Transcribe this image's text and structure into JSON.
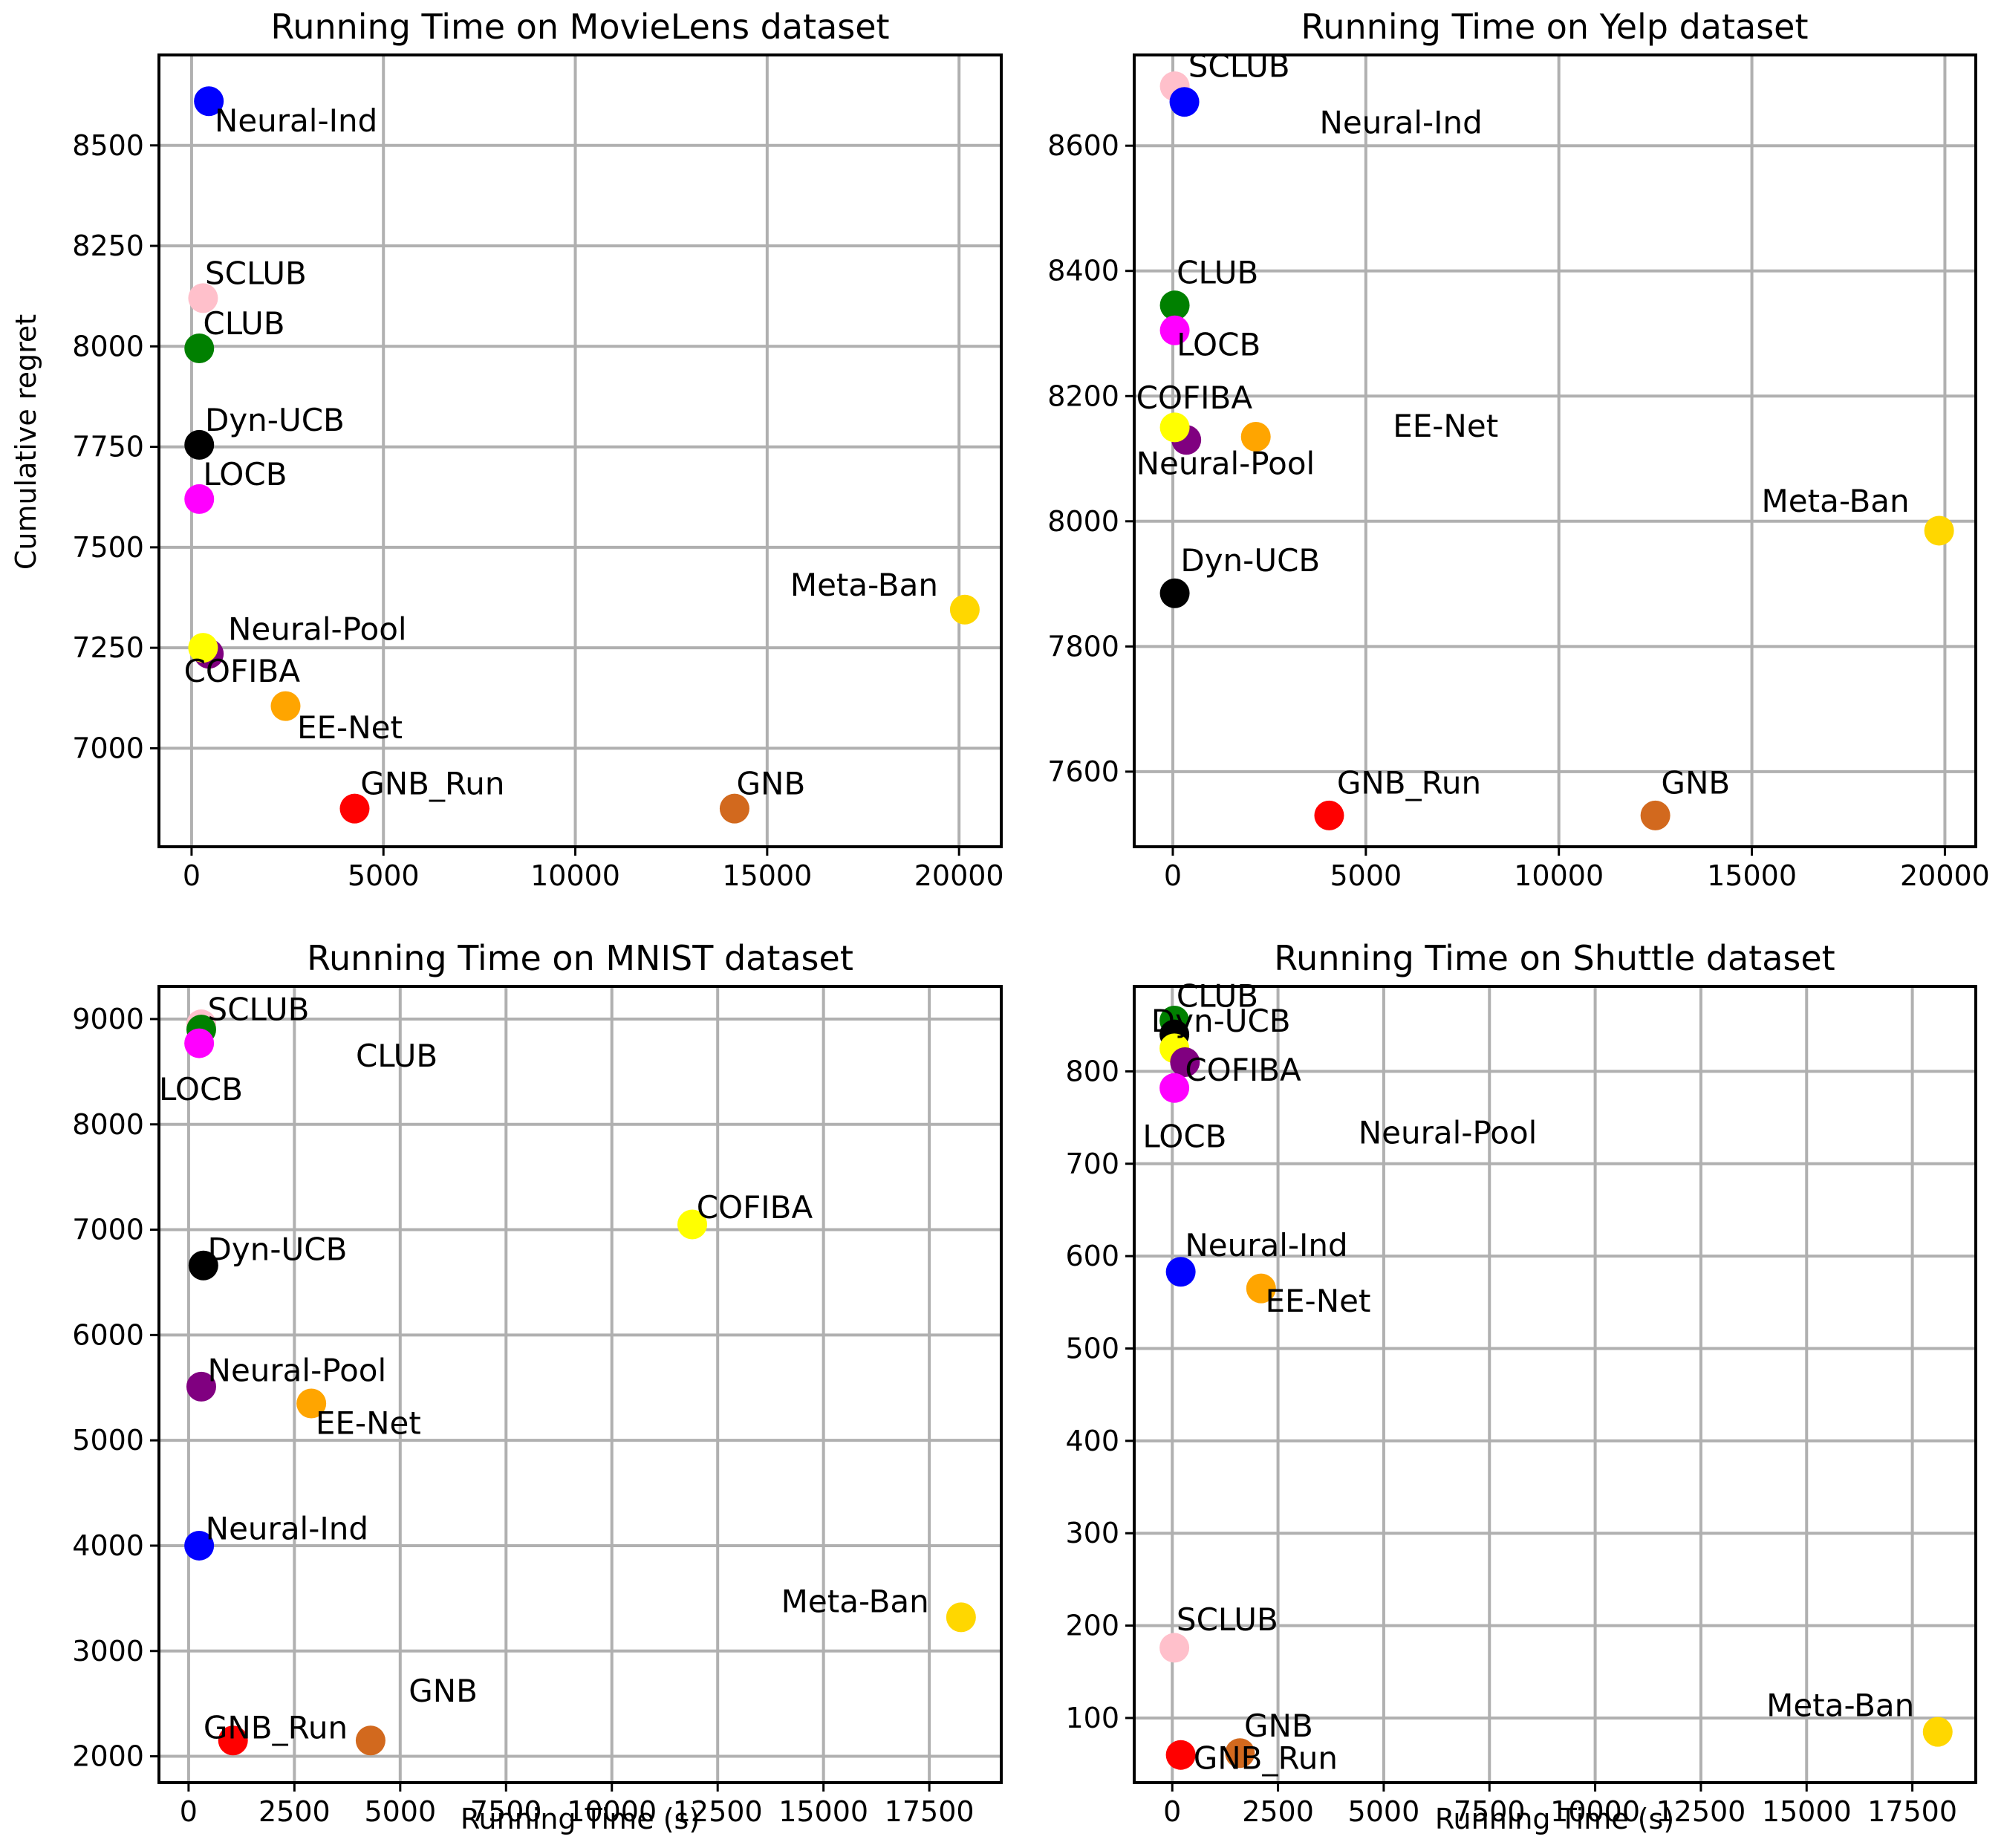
{
  "chart_data": [
    {
      "type": "scatter",
      "title": "Running Time on MovieLens dataset",
      "xlabel": "",
      "ylabel": "Cumulative regret",
      "xlim": [
        -850,
        21100
      ],
      "ylim": [
        6755,
        8725
      ],
      "xticks": [
        0,
        5000,
        10000,
        15000,
        20000
      ],
      "yticks": [
        7000,
        7250,
        7500,
        7750,
        8000,
        8250,
        8500
      ],
      "grid": true,
      "points": [
        {
          "name": "Neural-Ind",
          "x": 450,
          "y": 8610,
          "color": "#0000ff"
        },
        {
          "name": "SCLUB",
          "x": 300,
          "y": 8120,
          "color": "#ffc0cb"
        },
        {
          "name": "CLUB",
          "x": 200,
          "y": 7995,
          "color": "#008000"
        },
        {
          "name": "Dyn-UCB",
          "x": 200,
          "y": 7755,
          "color": "#000000"
        },
        {
          "name": "LOCB",
          "x": 200,
          "y": 7620,
          "color": "#ff00ff"
        },
        {
          "name": "Neural-Pool",
          "x": 450,
          "y": 7235,
          "color": "#800080"
        },
        {
          "name": "COFIBA",
          "x": 300,
          "y": 7250,
          "color": "#ffff00"
        },
        {
          "name": "EE-Net",
          "x": 2450,
          "y": 7105,
          "color": "#ffa500"
        },
        {
          "name": "GNB_Run",
          "x": 4250,
          "y": 6850,
          "color": "#ff0000"
        },
        {
          "name": "GNB",
          "x": 14150,
          "y": 6850,
          "color": "#d2691e"
        },
        {
          "name": "Meta-Ban",
          "x": 20150,
          "y": 7345,
          "color": "#ffd700"
        }
      ],
      "labels": [
        {
          "text": "Neural-Ind",
          "x": 600,
          "y": 8535
        },
        {
          "text": "SCLUB",
          "x": 350,
          "y": 8155
        },
        {
          "text": "CLUB",
          "x": 300,
          "y": 8030
        },
        {
          "text": "Dyn-UCB",
          "x": 350,
          "y": 7790
        },
        {
          "text": "LOCB",
          "x": 300,
          "y": 7655
        },
        {
          "text": "Neural-Pool",
          "x": 950,
          "y": 7270
        },
        {
          "text": "COFIBA",
          "x": -200,
          "y": 7165
        },
        {
          "text": "EE-Net",
          "x": 2750,
          "y": 7025
        },
        {
          "text": "GNB_Run",
          "x": 4400,
          "y": 6885
        },
        {
          "text": "GNB",
          "x": 14200,
          "y": 6885
        },
        {
          "text": "Meta-Ban",
          "x": 15600,
          "y": 7380
        }
      ]
    },
    {
      "type": "scatter",
      "title": "Running Time on Yelp dataset",
      "xlabel": "",
      "ylabel": "",
      "xlim": [
        -1000,
        20800
      ],
      "ylim": [
        7480,
        8745
      ],
      "xticks": [
        0,
        5000,
        10000,
        15000,
        20000
      ],
      "yticks": [
        7600,
        7800,
        8000,
        8200,
        8400,
        8600
      ],
      "grid": true,
      "points": [
        {
          "name": "SCLUB",
          "x": 50,
          "y": 8695,
          "color": "#ffc0cb"
        },
        {
          "name": "Neural-Ind",
          "x": 300,
          "y": 8670,
          "color": "#0000ff"
        },
        {
          "name": "CLUB",
          "x": 50,
          "y": 8345,
          "color": "#008000"
        },
        {
          "name": "LOCB",
          "x": 50,
          "y": 8305,
          "color": "#ff00ff"
        },
        {
          "name": "Neural-Pool",
          "x": 350,
          "y": 8130,
          "color": "#800080"
        },
        {
          "name": "COFIBA",
          "x": 50,
          "y": 8150,
          "color": "#ffff00"
        },
        {
          "name": "EE-Net",
          "x": 2150,
          "y": 8135,
          "color": "#ffa500"
        },
        {
          "name": "Dyn-UCB",
          "x": 50,
          "y": 7885,
          "color": "#000000"
        },
        {
          "name": "GNB_Run",
          "x": 4050,
          "y": 7530,
          "color": "#ff0000"
        },
        {
          "name": "GNB",
          "x": 12500,
          "y": 7530,
          "color": "#d2691e"
        },
        {
          "name": "Meta-Ban",
          "x": 19850,
          "y": 7985,
          "color": "#ffd700"
        }
      ],
      "labels": [
        {
          "text": "SCLUB",
          "x": 400,
          "y": 8710
        },
        {
          "text": "Neural-Ind",
          "x": 3800,
          "y": 8620
        },
        {
          "text": "CLUB",
          "x": 100,
          "y": 8380
        },
        {
          "text": "LOCB",
          "x": 100,
          "y": 8265
        },
        {
          "text": "COFIBA",
          "x": -950,
          "y": 8180
        },
        {
          "text": "EE-Net",
          "x": 5700,
          "y": 8135
        },
        {
          "text": "Neural-Pool",
          "x": -950,
          "y": 8075
        },
        {
          "text": "Meta-Ban",
          "x": 15250,
          "y": 8015
        },
        {
          "text": "Dyn-UCB",
          "x": 200,
          "y": 7920
        },
        {
          "text": "GNB_Run",
          "x": 4250,
          "y": 7565
        },
        {
          "text": "GNB",
          "x": 12650,
          "y": 7565
        }
      ]
    },
    {
      "type": "scatter",
      "title": "Running Time on MNIST dataset",
      "xlabel": "Running Time (s)",
      "ylabel": "",
      "xlim": [
        -700,
        19200
      ],
      "ylim": [
        1750,
        9310
      ],
      "xticks": [
        0,
        2500,
        5000,
        7500,
        10000,
        12500,
        15000,
        17500
      ],
      "tick_labels_x": [
        "0",
        "2500",
        "5000",
        "7500",
        "10000",
        "12500",
        "15000",
        "17500"
      ],
      "yticks": [
        2000,
        3000,
        4000,
        5000,
        6000,
        7000,
        8000,
        9000
      ],
      "grid": true,
      "points": [
        {
          "name": "SCLUB",
          "x": 300,
          "y": 8950,
          "color": "#ffc0cb"
        },
        {
          "name": "CLUB",
          "x": 300,
          "y": 8900,
          "color": "#008000"
        },
        {
          "name": "LOCB",
          "x": 250,
          "y": 8770,
          "color": "#ff00ff"
        },
        {
          "name": "COFIBA",
          "x": 11900,
          "y": 7050,
          "color": "#ffff00"
        },
        {
          "name": "Dyn-UCB",
          "x": 350,
          "y": 6660,
          "color": "#000000"
        },
        {
          "name": "Neural-Pool",
          "x": 300,
          "y": 5510,
          "color": "#800080"
        },
        {
          "name": "EE-Net",
          "x": 2900,
          "y": 5350,
          "color": "#ffa500"
        },
        {
          "name": "Neural-Ind",
          "x": 250,
          "y": 4000,
          "color": "#0000ff"
        },
        {
          "name": "Meta-Ban",
          "x": 18250,
          "y": 3320,
          "color": "#ffd700"
        },
        {
          "name": "GNB_Run",
          "x": 1050,
          "y": 2150,
          "color": "#ff0000"
        },
        {
          "name": "GNB",
          "x": 4300,
          "y": 2150,
          "color": "#d2691e"
        }
      ],
      "labels": [
        {
          "text": "SCLUB",
          "x": 450,
          "y": 8990
        },
        {
          "text": "CLUB",
          "x": 3950,
          "y": 8550
        },
        {
          "text": "LOCB",
          "x": -700,
          "y": 8230
        },
        {
          "text": "COFIBA",
          "x": 12000,
          "y": 7110
        },
        {
          "text": "Dyn-UCB",
          "x": 450,
          "y": 6710
        },
        {
          "text": "Neural-Pool",
          "x": 450,
          "y": 5560
        },
        {
          "text": "EE-Net",
          "x": 3000,
          "y": 5060
        },
        {
          "text": "Neural-Ind",
          "x": 400,
          "y": 4060
        },
        {
          "text": "Meta-Ban",
          "x": 14000,
          "y": 3370
        },
        {
          "text": "GNB",
          "x": 5200,
          "y": 2520
        },
        {
          "text": "GNB_Run",
          "x": 350,
          "y": 2170
        }
      ]
    },
    {
      "type": "scatter",
      "title": "Running Time on Shuttle dataset",
      "xlabel": "Running Time (s)",
      "ylabel": "",
      "xlim": [
        -900,
        19000
      ],
      "ylim": [
        30,
        892
      ],
      "xticks": [
        0,
        2500,
        5000,
        7500,
        10000,
        12500,
        15000,
        17500
      ],
      "tick_labels_x": [
        "0",
        "2500",
        "5000",
        "7500",
        "10000",
        "12500",
        "15000",
        "17500"
      ],
      "yticks": [
        100,
        200,
        300,
        400,
        500,
        600,
        700,
        800
      ],
      "grid": true,
      "points": [
        {
          "name": "CLUB",
          "x": 50,
          "y": 855,
          "color": "#008000"
        },
        {
          "name": "Dyn-UCB",
          "x": 50,
          "y": 840,
          "color": "#000000"
        },
        {
          "name": "COFIBA",
          "x": 50,
          "y": 825,
          "color": "#ffff00"
        },
        {
          "name": "Neural-Pool",
          "x": 300,
          "y": 810,
          "color": "#800080"
        },
        {
          "name": "LOCB",
          "x": 50,
          "y": 782,
          "color": "#ff00ff"
        },
        {
          "name": "Neural-Ind",
          "x": 200,
          "y": 583,
          "color": "#0000ff"
        },
        {
          "name": "EE-Net",
          "x": 2100,
          "y": 565,
          "color": "#ffa500"
        },
        {
          "name": "SCLUB",
          "x": 50,
          "y": 176,
          "color": "#ffc0cb"
        },
        {
          "name": "GNB",
          "x": 1600,
          "y": 62,
          "color": "#d2691e"
        },
        {
          "name": "GNB_Run",
          "x": 200,
          "y": 60,
          "color": "#ff0000"
        },
        {
          "name": "Meta-Ban",
          "x": 18100,
          "y": 85,
          "color": "#ffd700"
        }
      ],
      "labels": [
        {
          "text": "CLUB",
          "x": 100,
          "y": 870
        },
        {
          "text": "Dyn-UCB",
          "x": -500,
          "y": 843
        },
        {
          "text": "COFIBA",
          "x": 300,
          "y": 790
        },
        {
          "text": "LOCB",
          "x": -700,
          "y": 718
        },
        {
          "text": "Neural-Pool",
          "x": 4400,
          "y": 722
        },
        {
          "text": "Neural-Ind",
          "x": 300,
          "y": 600
        },
        {
          "text": "EE-Net",
          "x": 2200,
          "y": 540
        },
        {
          "text": "SCLUB",
          "x": 100,
          "y": 195
        },
        {
          "text": "Meta-Ban",
          "x": 14050,
          "y": 102
        },
        {
          "text": "GNB",
          "x": 1700,
          "y": 80
        },
        {
          "text": "GNB_Run",
          "x": 500,
          "y": 45
        }
      ]
    }
  ]
}
